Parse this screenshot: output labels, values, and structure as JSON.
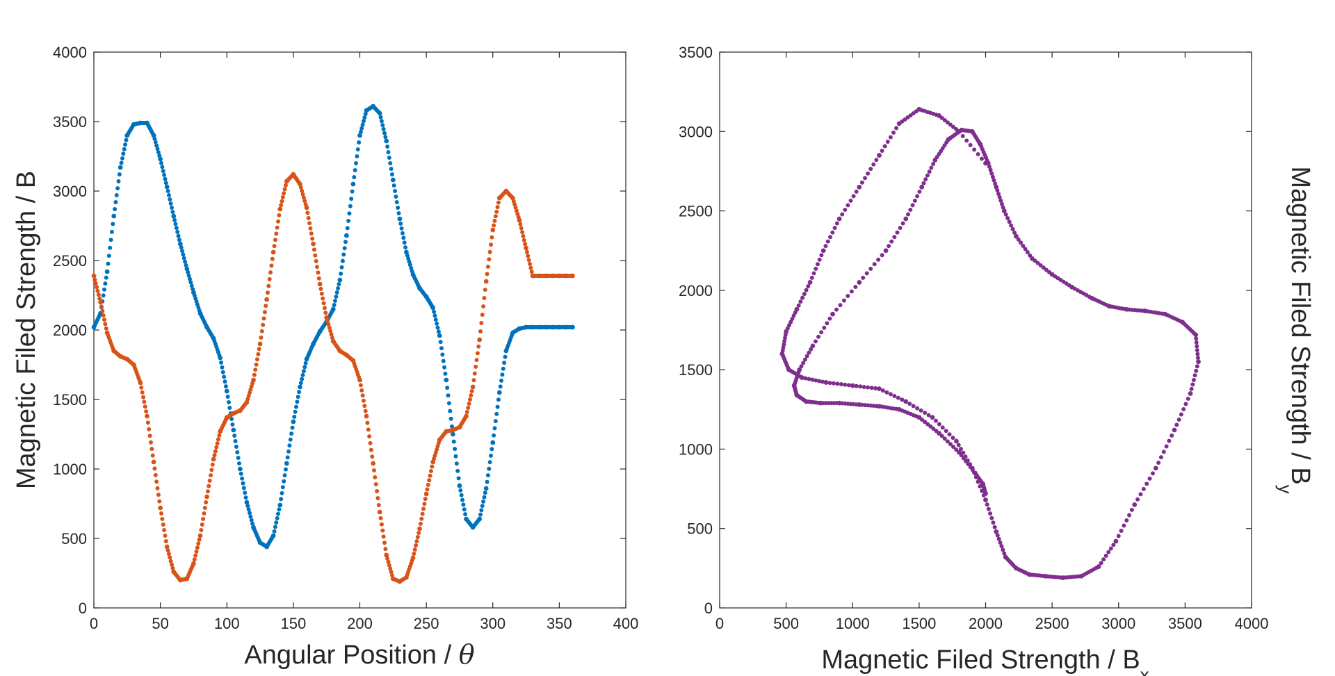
{
  "chart_data": [
    {
      "type": "scatter",
      "title": "",
      "xlabel": "Angular Position / ",
      "xlabel_symbol": "θ",
      "ylabel": "Magnetic Filed Strength / B",
      "xlim": [
        0,
        400
      ],
      "ylim": [
        0,
        4000
      ],
      "xticks": [
        "0",
        "50",
        "100",
        "150",
        "200",
        "250",
        "300",
        "350",
        "400"
      ],
      "yticks": [
        "0",
        "500",
        "1000",
        "1500",
        "2000",
        "2500",
        "3000",
        "3500",
        "4000"
      ],
      "grid": false,
      "series": [
        {
          "color": "#0072bd",
          "x": [
            0,
            5,
            10,
            15,
            20,
            25,
            30,
            35,
            40,
            45,
            50,
            55,
            60,
            65,
            70,
            75,
            80,
            85,
            90,
            95,
            100,
            105,
            110,
            115,
            120,
            125,
            130,
            135,
            140,
            145,
            150,
            155,
            160,
            165,
            170,
            175,
            180,
            185,
            190,
            195,
            200,
            205,
            210,
            215,
            220,
            225,
            230,
            235,
            240,
            245,
            250,
            255,
            260,
            265,
            270,
            275,
            280,
            285,
            290,
            295,
            300,
            305,
            310,
            315,
            320,
            325,
            330,
            335,
            340,
            345,
            350,
            355,
            360
          ],
          "y": [
            2020,
            2120,
            2420,
            2820,
            3170,
            3400,
            3480,
            3490,
            3490,
            3400,
            3230,
            3030,
            2820,
            2620,
            2440,
            2270,
            2120,
            2020,
            1940,
            1800,
            1560,
            1280,
            1000,
            760,
            580,
            470,
            440,
            520,
            740,
            1040,
            1340,
            1590,
            1790,
            1900,
            1990,
            2060,
            2150,
            2360,
            2680,
            3050,
            3400,
            3580,
            3610,
            3560,
            3360,
            3080,
            2800,
            2560,
            2400,
            2300,
            2240,
            2160,
            1960,
            1640,
            1250,
            880,
            640,
            580,
            640,
            860,
            1190,
            1550,
            1850,
            1980,
            2010,
            2020,
            2020,
            2020,
            2020,
            2020,
            2020,
            2020,
            2020
          ]
        },
        {
          "color": "#d95319",
          "x": [
            0,
            5,
            10,
            15,
            20,
            25,
            30,
            35,
            40,
            45,
            50,
            55,
            60,
            65,
            70,
            75,
            80,
            85,
            90,
            95,
            100,
            105,
            110,
            115,
            120,
            125,
            130,
            135,
            140,
            145,
            150,
            155,
            160,
            165,
            170,
            175,
            180,
            185,
            190,
            195,
            200,
            205,
            210,
            215,
            220,
            225,
            230,
            235,
            240,
            245,
            250,
            255,
            260,
            265,
            270,
            275,
            280,
            285,
            290,
            295,
            300,
            305,
            310,
            315,
            320,
            325,
            330,
            335,
            340,
            345,
            350,
            355,
            360
          ],
          "y": [
            2390,
            2200,
            1980,
            1850,
            1810,
            1790,
            1750,
            1620,
            1380,
            1050,
            720,
            440,
            260,
            200,
            210,
            320,
            520,
            800,
            1070,
            1270,
            1370,
            1400,
            1420,
            1480,
            1640,
            1900,
            2220,
            2560,
            2870,
            3070,
            3120,
            3050,
            2880,
            2620,
            2330,
            2090,
            1920,
            1850,
            1820,
            1780,
            1640,
            1380,
            1040,
            690,
            380,
            210,
            190,
            220,
            360,
            570,
            820,
            1050,
            1210,
            1270,
            1280,
            1300,
            1380,
            1590,
            1930,
            2350,
            2720,
            2950,
            3000,
            2950,
            2790,
            2590,
            2390,
            2390,
            2390,
            2390,
            2390,
            2390,
            2390
          ]
        }
      ]
    },
    {
      "type": "scatter",
      "title": "",
      "xlabel": "Magnetic Filed Strength / B",
      "xlabel_sub": "x",
      "ylabel": "Magnetic Filed Strength / B",
      "ylabel_sub": "y",
      "ylabel_position": "right",
      "xlim": [
        0,
        4000
      ],
      "ylim": [
        0,
        3500
      ],
      "xticks": [
        "0",
        "500",
        "1000",
        "1500",
        "2000",
        "2500",
        "3000",
        "3500",
        "4000"
      ],
      "yticks": [
        "0",
        "500",
        "1000",
        "1500",
        "2000",
        "2500",
        "3000",
        "3500"
      ],
      "grid": false,
      "series": [
        {
          "color": "#7e2f8e",
          "note": "closed loop traced twice (outer and inner pass)",
          "x": [
            2000,
            1800,
            1650,
            1500,
            1350,
            1200,
            1050,
            900,
            780,
            680,
            580,
            500,
            470,
            520,
            620,
            800,
            1000,
            1200,
            1400,
            1600,
            1780,
            1900,
            2000,
            2080,
            2150,
            2230,
            2330,
            2450,
            2580,
            2720,
            2850,
            2980,
            3120,
            3280,
            3420,
            3540,
            3600,
            3580,
            3480,
            3350,
            3200,
            3060,
            2930,
            2800,
            2650,
            2500,
            2350,
            2230,
            2140,
            2080,
            2020,
            1960,
            1900,
            1820,
            1720,
            1620,
            1520,
            1400,
            1250,
            1050,
            850,
            700,
            600,
            560,
            580,
            650,
            760,
            900,
            1050,
            1200,
            1350,
            1500,
            1650,
            1800,
            1920,
            1980,
            2000
          ],
          "y": [
            2800,
            3000,
            3100,
            3140,
            3050,
            2850,
            2650,
            2450,
            2250,
            2050,
            1880,
            1740,
            1600,
            1500,
            1450,
            1420,
            1400,
            1380,
            1300,
            1200,
            1050,
            880,
            680,
            480,
            320,
            250,
            210,
            200,
            190,
            200,
            260,
            420,
            650,
            880,
            1120,
            1350,
            1550,
            1720,
            1800,
            1850,
            1870,
            1880,
            1900,
            1950,
            2020,
            2100,
            2200,
            2340,
            2500,
            2650,
            2800,
            2920,
            3000,
            3010,
            2950,
            2820,
            2650,
            2450,
            2250,
            2050,
            1850,
            1650,
            1500,
            1400,
            1340,
            1300,
            1290,
            1290,
            1280,
            1270,
            1250,
            1200,
            1100,
            980,
            850,
            780,
            720
          ]
        }
      ]
    }
  ]
}
